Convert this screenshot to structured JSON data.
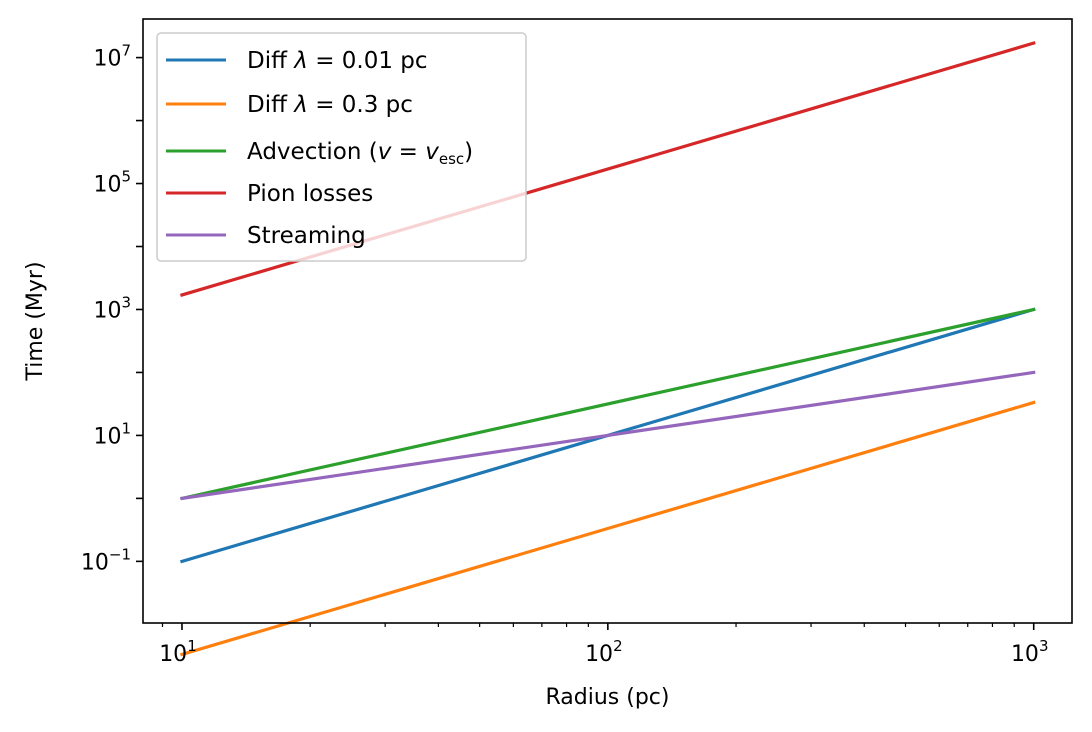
{
  "chart_data": {
    "type": "line",
    "xlabel": "Radius (pc)",
    "ylabel": "Time (Myr)",
    "xscale": "log",
    "yscale": "log",
    "xlim": [
      8.1,
      1230
    ],
    "ylim": [
      0.0105,
      41000000
    ],
    "grid": false,
    "legend_position": "upper-left",
    "x_ticks": [
      {
        "base": "10",
        "exp": "1",
        "value": 10
      },
      {
        "base": "10",
        "exp": "2",
        "value": 100
      },
      {
        "base": "10",
        "exp": "3",
        "value": 1000
      }
    ],
    "y_ticks": [
      {
        "base": "10",
        "exp": "−1",
        "value": 0.1
      },
      {
        "base": "10",
        "exp": "1",
        "value": 10
      },
      {
        "base": "10",
        "exp": "3",
        "value": 1000
      },
      {
        "base": "10",
        "exp": "5",
        "value": 100000
      },
      {
        "base": "10",
        "exp": "7",
        "value": 10000000
      }
    ],
    "x": [
      10,
      1000
    ],
    "series": [
      {
        "name": "Diff λ = 0.01 pc",
        "legend_main": "Diff ",
        "legend_lambda": "λ",
        "legend_rest": " = 0.01 pc",
        "color": "#1f77b4",
        "y": [
          0.1,
          1000
        ]
      },
      {
        "name": "Diff λ = 0.3 pc",
        "legend_main": "Diff ",
        "legend_lambda": "λ",
        "legend_rest": " = 0.3 pc",
        "color": "#ff7f0e",
        "y": [
          0.00333,
          33.3
        ]
      },
      {
        "name": "Advection (v = v_esc)",
        "legend_main": "Advection (",
        "legend_v1": "v",
        "legend_eq": " = ",
        "legend_v2": "v",
        "legend_sub": "esc",
        "legend_close": ")",
        "color": "#2ca02c",
        "y": [
          1,
          1000
        ]
      },
      {
        "name": "Pion losses",
        "legend_main": "Pion losses",
        "color": "#d62728",
        "y": [
          1700,
          17000000
        ]
      },
      {
        "name": "Streaming",
        "legend_main": "Streaming",
        "color": "#9467bd",
        "y": [
          1,
          100
        ]
      }
    ]
  }
}
